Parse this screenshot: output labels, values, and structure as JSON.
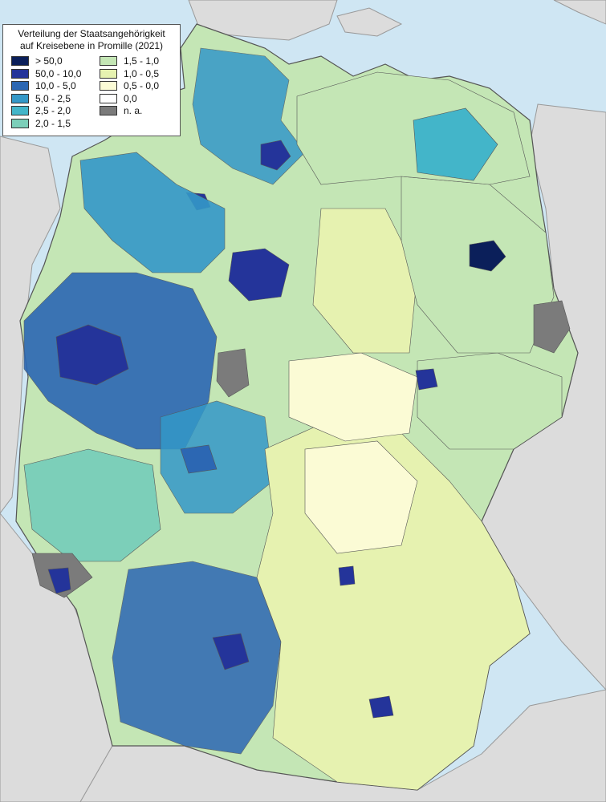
{
  "legend": {
    "title_line1": "Verteilung der Staatsangehörigkeit",
    "title_line2": "auf Kreisebene in Promille (2021)",
    "classes": [
      {
        "label": "> 50,0",
        "color": "#0b1f5a"
      },
      {
        "label": "50,0 - 10,0",
        "color": "#24349a"
      },
      {
        "label": "10,0 - 5,0",
        "color": "#2c67b3"
      },
      {
        "label": "5,0 - 2,5",
        "color": "#3498c8"
      },
      {
        "label": "2,5 - 2,0",
        "color": "#43b5c9"
      },
      {
        "label": "2,0 - 1,5",
        "color": "#7ccfb9"
      },
      {
        "label": "1,5 - 1,0",
        "color": "#c4e6b5"
      },
      {
        "label": "1,0 - 0,5",
        "color": "#e6f2b0"
      },
      {
        "label": "0,5 - 0,0",
        "color": "#fbfbd5"
      },
      {
        "label": "0,0",
        "color": "#ffffff"
      },
      {
        "label": "n. a.",
        "color": "#7b7b7b"
      }
    ]
  },
  "colors": {
    "sea": "#cfe6f3",
    "neighbor_land": "#dcdcdc",
    "border": "#555555"
  }
}
